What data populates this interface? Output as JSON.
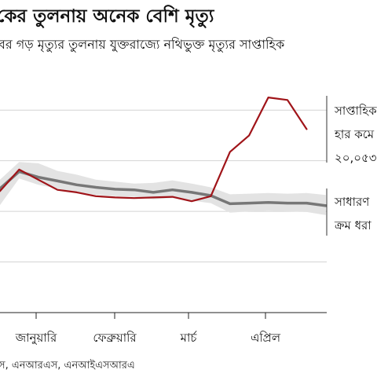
{
  "title": "কের তুলনায় অনেক বেশি মৃত্যু",
  "subtitle": "বর গড় মৃত্যুর তুলনায় যুক্তরাজ্যে নথিভুক্ত মৃত্যুর সাপ্তাহিক",
  "source": "স, এনআরএস, এনআইএসআরএ",
  "chart_data": {
    "type": "line",
    "x_tick_labels": [
      "জানুয়ারি",
      "ফেব্রুয়ারি",
      "মার্চ",
      "এপ্রিল"
    ],
    "ylim": [
      5000,
      23000
    ],
    "grid": true,
    "series": [
      {
        "name": "weekly",
        "color": "#a01419",
        "values": [
          14600,
          16300,
          15500,
          14700,
          14500,
          14200,
          14100,
          14050,
          14100,
          14150,
          13800,
          14200,
          17700,
          19000,
          22000,
          21800,
          19500
        ]
      },
      {
        "name": "average",
        "color": "#777777",
        "values": [
          14800,
          16150,
          15700,
          15400,
          15100,
          14900,
          14750,
          14700,
          14500,
          14700,
          14500,
          14250,
          13600,
          13650,
          13700,
          13650,
          13650,
          13450
        ]
      },
      {
        "name": "range_upper",
        "color": "#e3e3e3",
        "values": [
          15500,
          16900,
          16800,
          16200,
          15900,
          15500,
          15350,
          15200,
          15250,
          15450,
          15200,
          14900,
          14350,
          14400,
          14450,
          14400,
          14450,
          14300
        ]
      },
      {
        "name": "range_lower",
        "color": "#e3e3e3",
        "values": [
          13500,
          15600,
          15100,
          14800,
          14500,
          14300,
          14200,
          14150,
          13950,
          14050,
          13850,
          13650,
          12900,
          13000,
          13050,
          13000,
          12950,
          12700
        ]
      }
    ],
    "annotations": [
      {
        "lines": [
          "সাপ্তাহিক",
          "হার কমে",
          "২০,০৫৩"
        ]
      },
      {
        "lines": [
          "সাধারণ",
          "ক্রম ধরা"
        ]
      }
    ]
  }
}
